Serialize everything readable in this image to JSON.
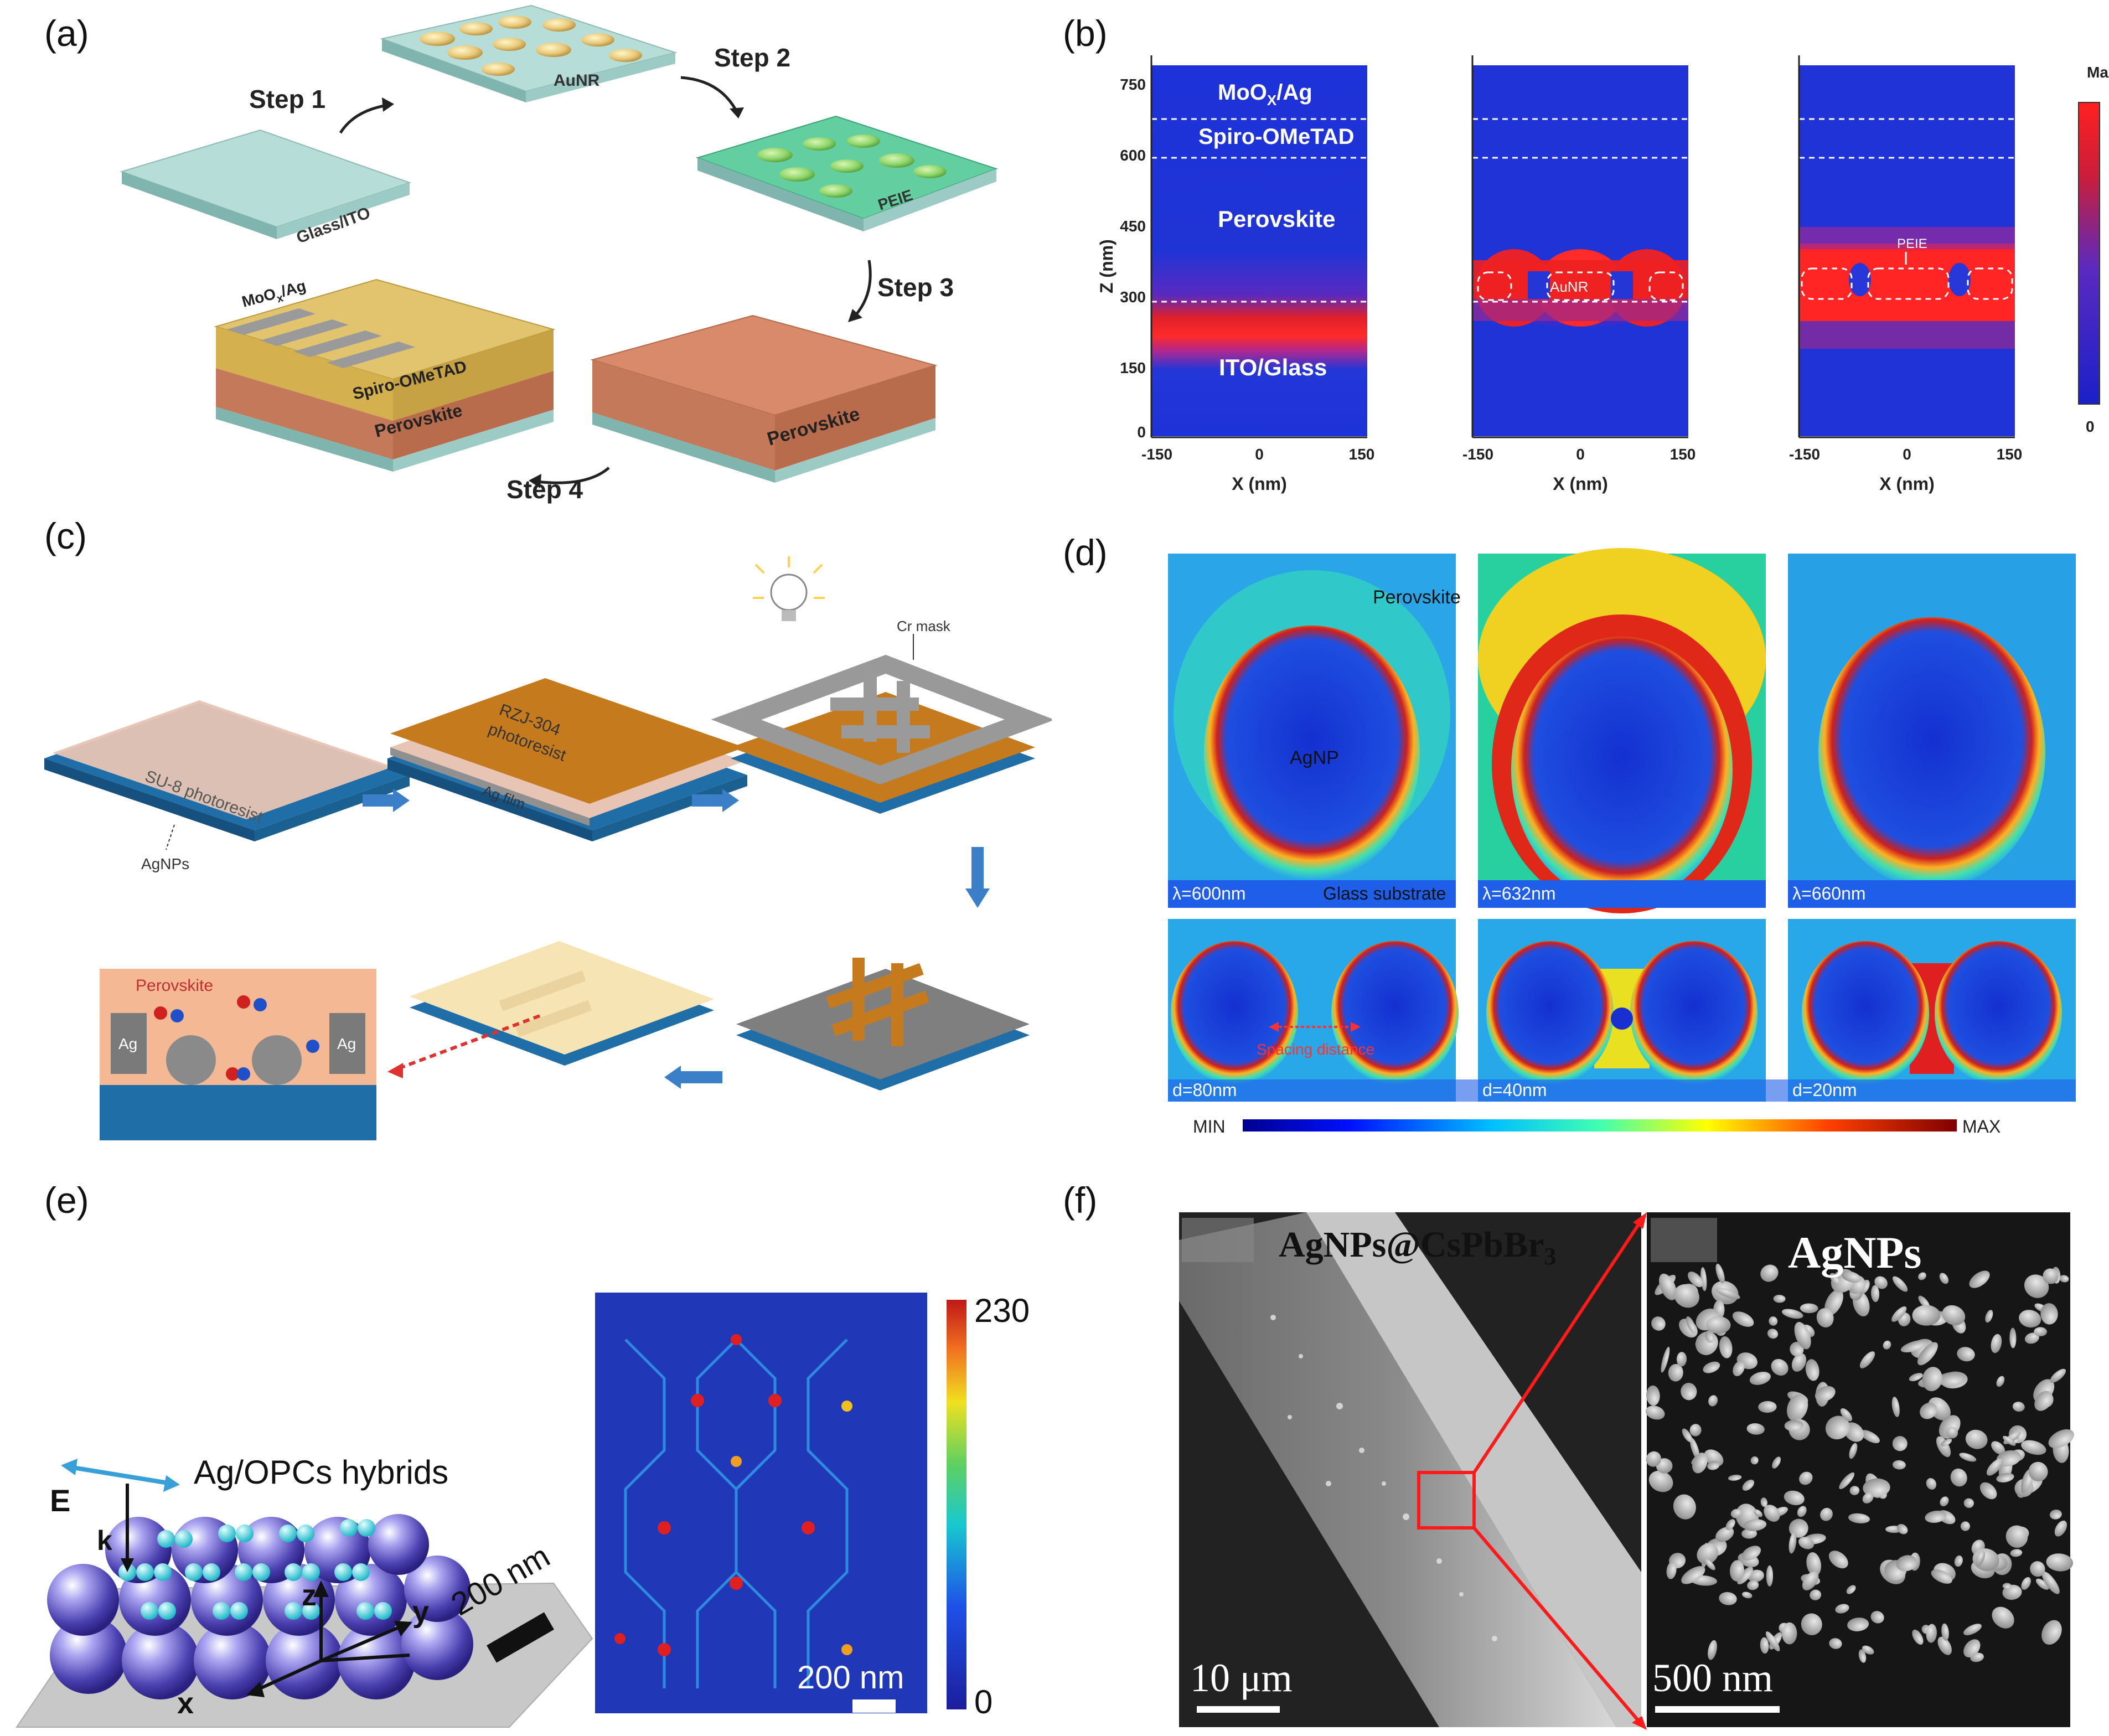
{
  "panels": {
    "a": {
      "label": "(a)",
      "steps": [
        "Step 1",
        "Step 2",
        "Step 3",
        "Step 4"
      ],
      "layers": {
        "glass_ito": "Glass/ITO",
        "aunr": "AuNR",
        "peie": "PEIE",
        "perovskite": "Perovskite",
        "spiro": "Spiro-OMeTAD",
        "contact_pre": "MoO",
        "contact_sub": "x",
        "contact_post": "/Ag"
      }
    },
    "b": {
      "label": "(b)",
      "layers": {
        "contact_pre": "MoO",
        "contact_sub": "X",
        "contact_post": "/Ag",
        "spiro": "Spiro-OMeTAD",
        "perovskite": "Perovskite",
        "ito": "ITO/Glass",
        "aunr": "AuNR",
        "peie": "PEIE"
      },
      "y_label": "Z (nm)",
      "y_ticks": [
        "750",
        "600",
        "450",
        "300",
        "150",
        "0"
      ],
      "x_label": "X (nm)",
      "x_ticks": [
        "-150",
        "0",
        "150"
      ],
      "colorbar_max": "Max",
      "colorbar_min": "0"
    },
    "c": {
      "label": "(c)",
      "labels": {
        "su8": "SU-8 photoresist",
        "agnps": "AgNPs",
        "rzj_line1": "RZJ-304",
        "rzj_line2": "photoresist",
        "ag_film": "Ag film",
        "cr_mask": "Cr mask",
        "perovskite": "Perovskite",
        "ag": "Ag"
      }
    },
    "d": {
      "label": "(d)",
      "top": {
        "perovskite": "Perovskite",
        "agnp": "AgNP",
        "glass": "Glass substrate",
        "lambdas": [
          "λ=600nm",
          "λ=632nm",
          "λ=660nm"
        ]
      },
      "bottom": {
        "spacing": "Spacing distance",
        "distances": [
          "d=80nm",
          "d=40nm",
          "d=20nm"
        ]
      },
      "colorbar_min": "MIN",
      "colorbar_max": "MAX"
    },
    "e": {
      "label": "(e)",
      "title": "Ag/OPCs hybrids",
      "axes": {
        "e": "E",
        "k": "k",
        "z": "z",
        "y": "y",
        "x": "x"
      },
      "scale_3d": "200 nm",
      "scale_map": "200 nm",
      "colorbar_max": "230",
      "colorbar_min": "0"
    },
    "f": {
      "label": "(f)",
      "left_title_pre": "AgNPs@CsPbBr",
      "left_title_sub": "3",
      "right_title": "AgNPs",
      "left_scale": "10 μm",
      "right_scale": "500 nm"
    }
  }
}
